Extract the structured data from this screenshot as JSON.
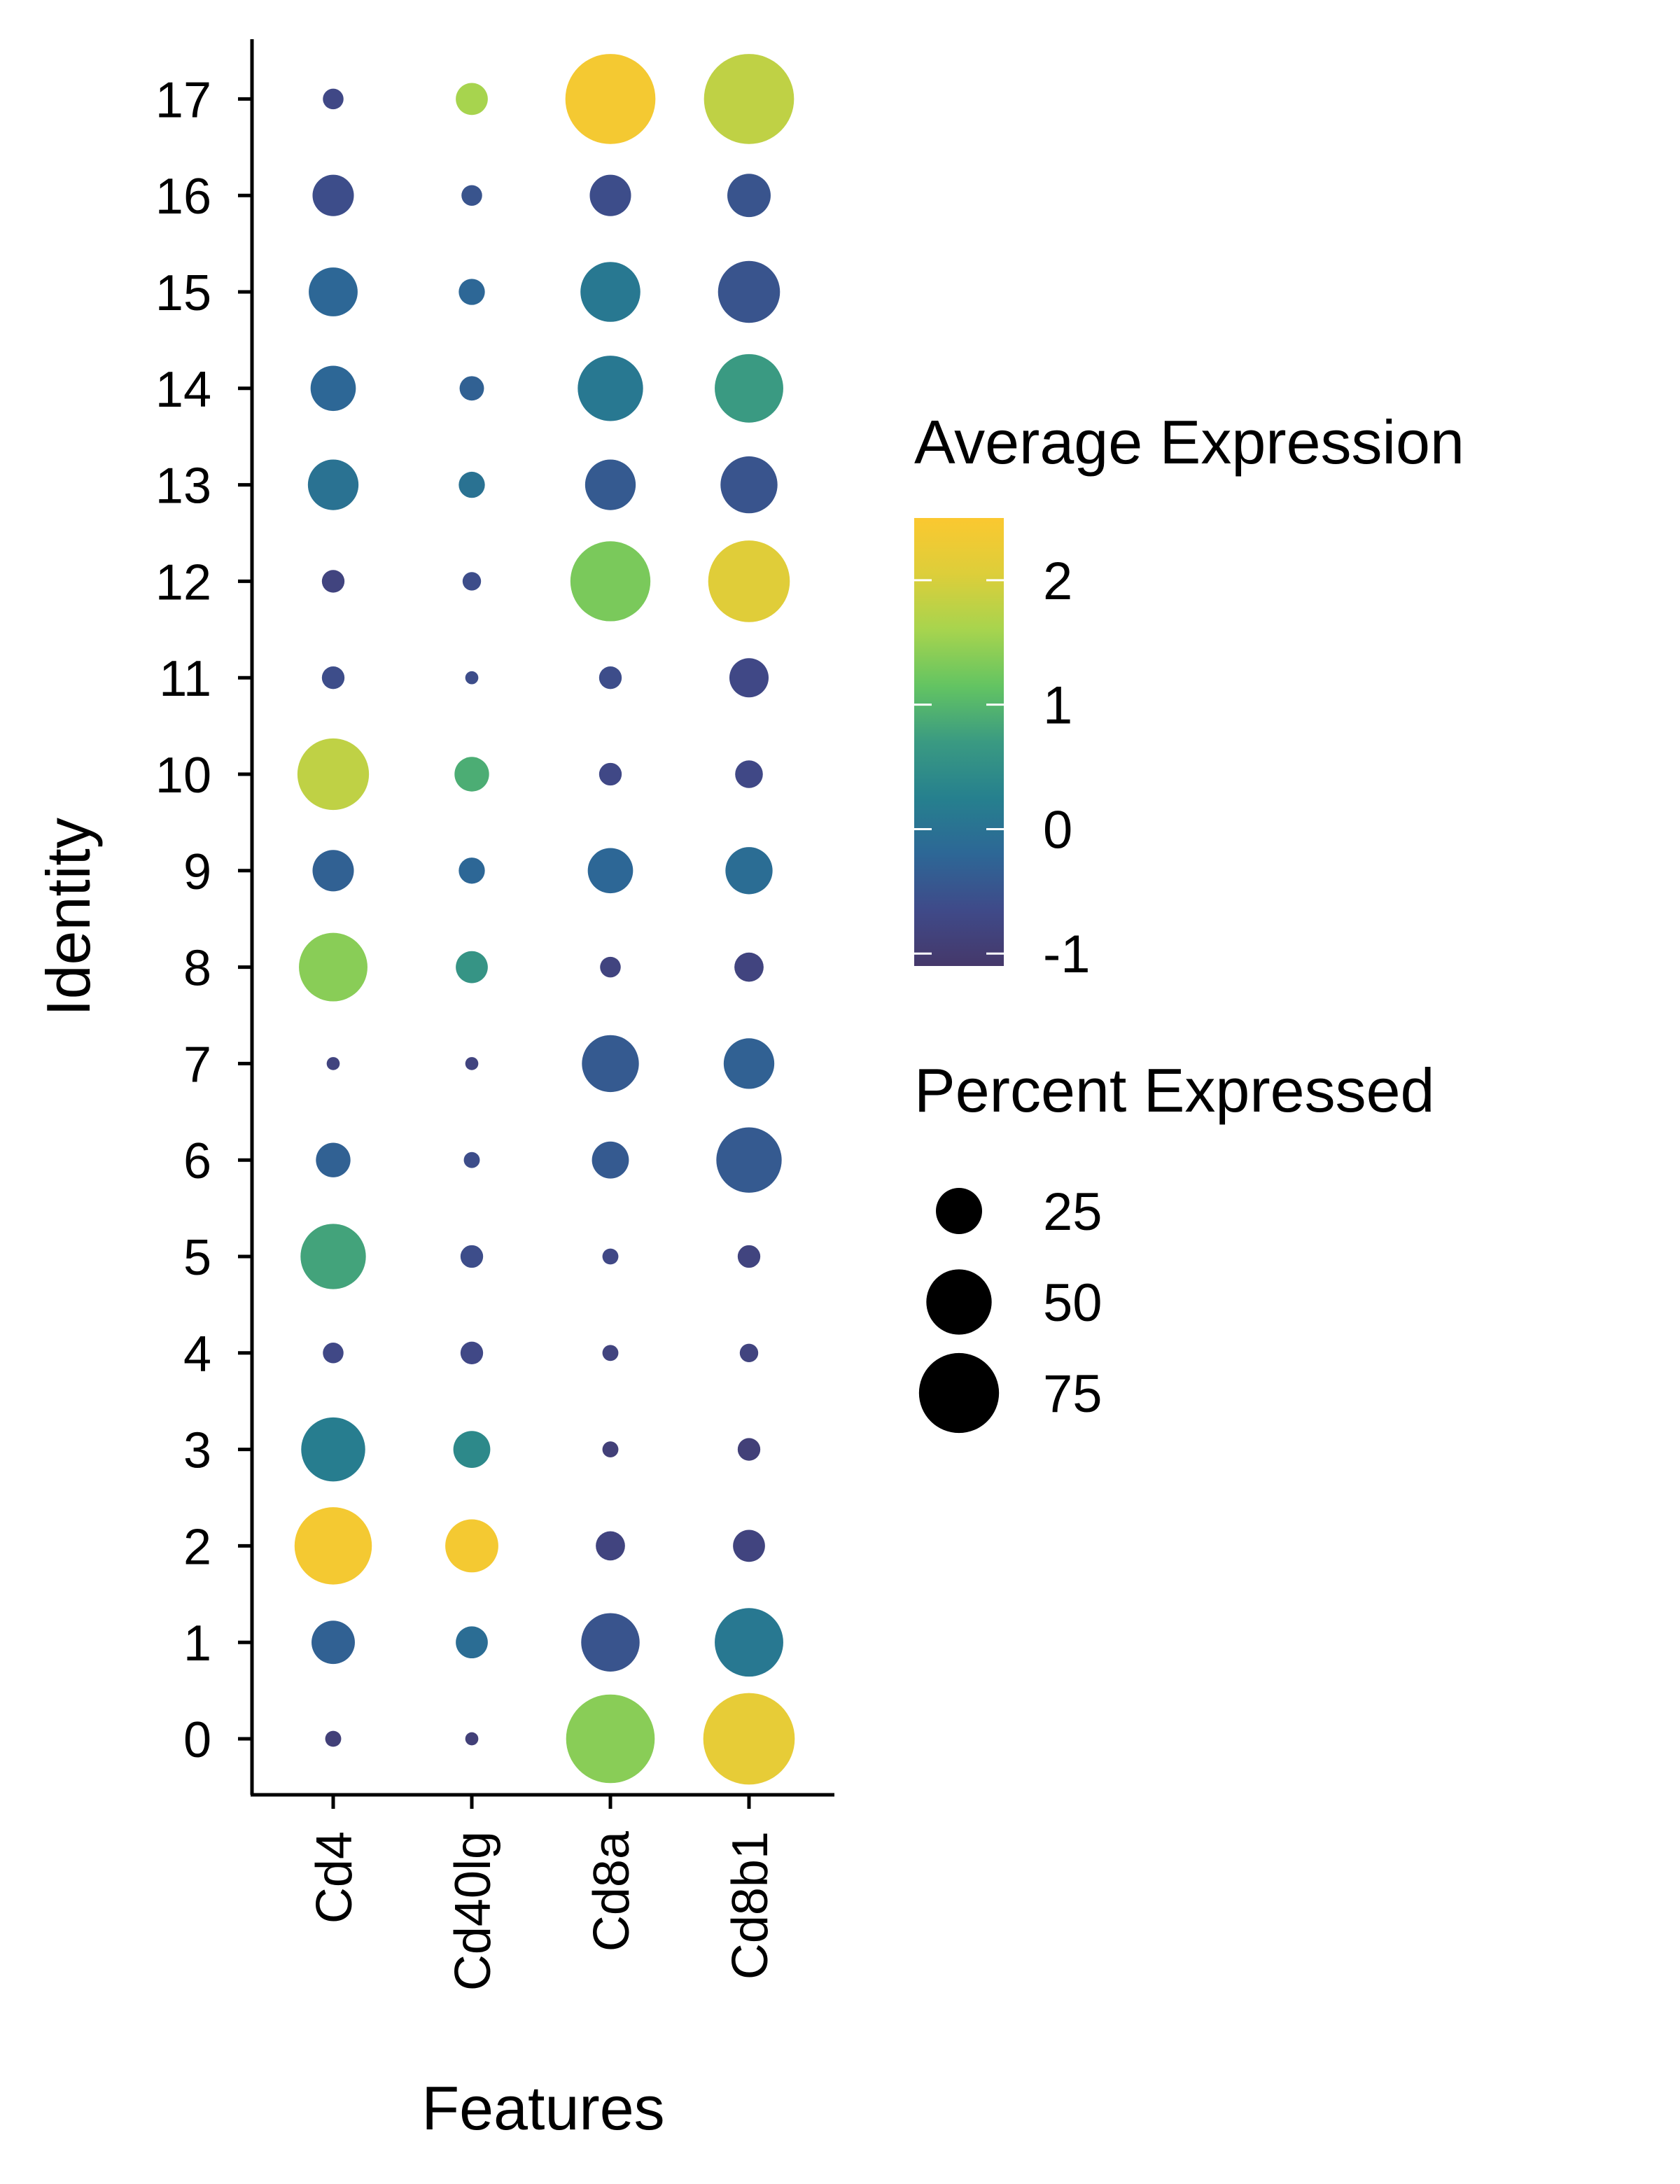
{
  "chart_data": {
    "type": "dotplot",
    "xlabel": "Features",
    "ylabel": "Identity",
    "features": [
      "Cd4",
      "Cd40lg",
      "Cd8a",
      "Cd8b1"
    ],
    "identities": [
      "0",
      "1",
      "2",
      "3",
      "4",
      "5",
      "6",
      "7",
      "8",
      "9",
      "10",
      "11",
      "12",
      "13",
      "14",
      "15",
      "16",
      "17"
    ],
    "points": [
      {
        "identity": "0",
        "feature": "Cd4",
        "pct": 3,
        "avg": -0.9
      },
      {
        "identity": "0",
        "feature": "Cd40lg",
        "pct": 2,
        "avg": -0.9
      },
      {
        "identity": "0",
        "feature": "Cd8a",
        "pct": 92,
        "avg": 1.4
      },
      {
        "identity": "0",
        "feature": "Cd8b1",
        "pct": 98,
        "avg": 2.2
      },
      {
        "identity": "1",
        "feature": "Cd4",
        "pct": 22,
        "avg": -0.3
      },
      {
        "identity": "1",
        "feature": "Cd40lg",
        "pct": 12,
        "avg": -0.1
      },
      {
        "identity": "1",
        "feature": "Cd8a",
        "pct": 40,
        "avg": -0.5
      },
      {
        "identity": "1",
        "feature": "Cd8b1",
        "pct": 55,
        "avg": 0.1
      },
      {
        "identity": "2",
        "feature": "Cd4",
        "pct": 70,
        "avg": 2.4
      },
      {
        "identity": "2",
        "feature": "Cd40lg",
        "pct": 33,
        "avg": 2.4
      },
      {
        "identity": "2",
        "feature": "Cd8a",
        "pct": 10,
        "avg": -0.8
      },
      {
        "identity": "2",
        "feature": "Cd8b1",
        "pct": 12,
        "avg": -0.8
      },
      {
        "identity": "3",
        "feature": "Cd4",
        "pct": 48,
        "avg": 0.2
      },
      {
        "identity": "3",
        "feature": "Cd40lg",
        "pct": 16,
        "avg": 0.4
      },
      {
        "identity": "3",
        "feature": "Cd8a",
        "pct": 3,
        "avg": -0.9
      },
      {
        "identity": "3",
        "feature": "Cd8b1",
        "pct": 6,
        "avg": -0.9
      },
      {
        "identity": "4",
        "feature": "Cd4",
        "pct": 5,
        "avg": -0.7
      },
      {
        "identity": "4",
        "feature": "Cd40lg",
        "pct": 6,
        "avg": -0.7
      },
      {
        "identity": "4",
        "feature": "Cd8a",
        "pct": 3,
        "avg": -0.8
      },
      {
        "identity": "4",
        "feature": "Cd8b1",
        "pct": 4,
        "avg": -0.8
      },
      {
        "identity": "5",
        "feature": "Cd4",
        "pct": 50,
        "avg": 0.8
      },
      {
        "identity": "5",
        "feature": "Cd40lg",
        "pct": 6,
        "avg": -0.6
      },
      {
        "identity": "5",
        "feature": "Cd8a",
        "pct": 3,
        "avg": -0.7
      },
      {
        "identity": "5",
        "feature": "Cd8b1",
        "pct": 6,
        "avg": -0.8
      },
      {
        "identity": "6",
        "feature": "Cd4",
        "pct": 14,
        "avg": -0.3
      },
      {
        "identity": "6",
        "feature": "Cd40lg",
        "pct": 3,
        "avg": -0.6
      },
      {
        "identity": "6",
        "feature": "Cd8a",
        "pct": 16,
        "avg": -0.4
      },
      {
        "identity": "6",
        "feature": "Cd8b1",
        "pct": 50,
        "avg": -0.4
      },
      {
        "identity": "7",
        "feature": "Cd4",
        "pct": 2,
        "avg": -0.8
      },
      {
        "identity": "7",
        "feature": "Cd40lg",
        "pct": 2,
        "avg": -0.8
      },
      {
        "identity": "7",
        "feature": "Cd8a",
        "pct": 38,
        "avg": -0.4
      },
      {
        "identity": "7",
        "feature": "Cd8b1",
        "pct": 30,
        "avg": -0.3
      },
      {
        "identity": "8",
        "feature": "Cd4",
        "pct": 55,
        "avg": 1.4
      },
      {
        "identity": "8",
        "feature": "Cd40lg",
        "pct": 12,
        "avg": 0.6
      },
      {
        "identity": "8",
        "feature": "Cd8a",
        "pct": 5,
        "avg": -0.8
      },
      {
        "identity": "8",
        "feature": "Cd8b1",
        "pct": 10,
        "avg": -0.8
      },
      {
        "identity": "9",
        "feature": "Cd4",
        "pct": 20,
        "avg": -0.3
      },
      {
        "identity": "9",
        "feature": "Cd40lg",
        "pct": 8,
        "avg": -0.2
      },
      {
        "identity": "9",
        "feature": "Cd8a",
        "pct": 24,
        "avg": -0.2
      },
      {
        "identity": "9",
        "feature": "Cd8b1",
        "pct": 26,
        "avg": -0.1
      },
      {
        "identity": "10",
        "feature": "Cd4",
        "pct": 60,
        "avg": 1.8
      },
      {
        "identity": "10",
        "feature": "Cd40lg",
        "pct": 14,
        "avg": 0.9
      },
      {
        "identity": "10",
        "feature": "Cd8a",
        "pct": 6,
        "avg": -0.7
      },
      {
        "identity": "10",
        "feature": "Cd8b1",
        "pct": 9,
        "avg": -0.7
      },
      {
        "identity": "11",
        "feature": "Cd4",
        "pct": 6,
        "avg": -0.6
      },
      {
        "identity": "11",
        "feature": "Cd40lg",
        "pct": 2,
        "avg": -0.6
      },
      {
        "identity": "11",
        "feature": "Cd8a",
        "pct": 6,
        "avg": -0.6
      },
      {
        "identity": "11",
        "feature": "Cd8b1",
        "pct": 18,
        "avg": -0.7
      },
      {
        "identity": "12",
        "feature": "Cd4",
        "pct": 6,
        "avg": -0.8
      },
      {
        "identity": "12",
        "feature": "Cd40lg",
        "pct": 4,
        "avg": -0.6
      },
      {
        "identity": "12",
        "feature": "Cd8a",
        "pct": 75,
        "avg": 1.3
      },
      {
        "identity": "12",
        "feature": "Cd8b1",
        "pct": 78,
        "avg": 2.1
      },
      {
        "identity": "13",
        "feature": "Cd4",
        "pct": 30,
        "avg": 0.0
      },
      {
        "identity": "13",
        "feature": "Cd40lg",
        "pct": 8,
        "avg": 0.0
      },
      {
        "identity": "13",
        "feature": "Cd8a",
        "pct": 30,
        "avg": -0.4
      },
      {
        "identity": "13",
        "feature": "Cd8b1",
        "pct": 38,
        "avg": -0.5
      },
      {
        "identity": "14",
        "feature": "Cd4",
        "pct": 24,
        "avg": -0.2
      },
      {
        "identity": "14",
        "feature": "Cd40lg",
        "pct": 7,
        "avg": -0.3
      },
      {
        "identity": "14",
        "feature": "Cd8a",
        "pct": 50,
        "avg": 0.1
      },
      {
        "identity": "14",
        "feature": "Cd8b1",
        "pct": 55,
        "avg": 0.7
      },
      {
        "identity": "15",
        "feature": "Cd4",
        "pct": 28,
        "avg": -0.2
      },
      {
        "identity": "15",
        "feature": "Cd40lg",
        "pct": 8,
        "avg": -0.2
      },
      {
        "identity": "15",
        "feature": "Cd8a",
        "pct": 42,
        "avg": 0.1
      },
      {
        "identity": "15",
        "feature": "Cd8b1",
        "pct": 45,
        "avg": -0.5
      },
      {
        "identity": "16",
        "feature": "Cd4",
        "pct": 20,
        "avg": -0.6
      },
      {
        "identity": "16",
        "feature": "Cd40lg",
        "pct": 5,
        "avg": -0.5
      },
      {
        "identity": "16",
        "feature": "Cd8a",
        "pct": 20,
        "avg": -0.6
      },
      {
        "identity": "16",
        "feature": "Cd8b1",
        "pct": 22,
        "avg": -0.5
      },
      {
        "identity": "17",
        "feature": "Cd4",
        "pct": 5,
        "avg": -0.7
      },
      {
        "identity": "17",
        "feature": "Cd40lg",
        "pct": 12,
        "avg": 1.6
      },
      {
        "identity": "17",
        "feature": "Cd8a",
        "pct": 95,
        "avg": 2.4
      },
      {
        "identity": "17",
        "feature": "Cd8b1",
        "pct": 95,
        "avg": 1.8
      }
    ],
    "color_scale": {
      "title": "Average Expression",
      "min": -1.1,
      "max": 2.5,
      "ticks": [
        2,
        1,
        0,
        -1
      ],
      "tick_labels": [
        "2",
        "1",
        "0",
        "-1"
      ],
      "palette": [
        "#45386a",
        "#3f4a89",
        "#2d6796",
        "#26808e",
        "#3a9a82",
        "#63c462",
        "#a7d44e",
        "#ddce3a",
        "#fbc830"
      ]
    },
    "size_scale": {
      "title": "Percent Expressed",
      "values": [
        25,
        50,
        75
      ],
      "labels": [
        "25",
        "50",
        "75"
      ],
      "max_value": 100
    },
    "grid": false,
    "legend_position": "right"
  }
}
